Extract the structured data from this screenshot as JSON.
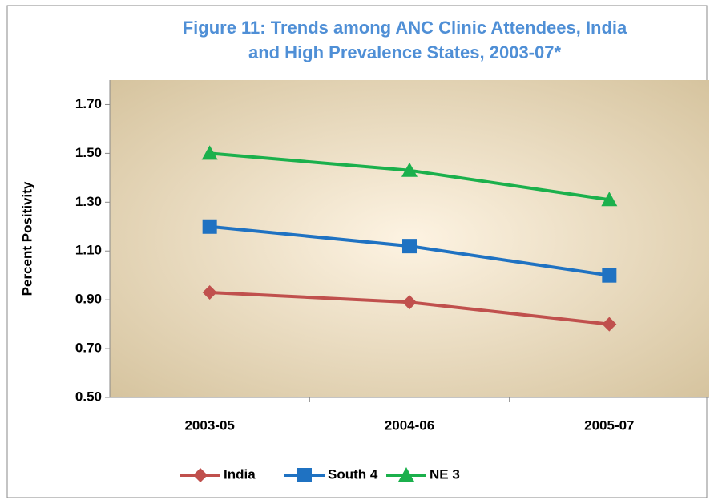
{
  "chart_data": {
    "type": "line",
    "title": [
      "Figure 11: Trends among ANC Clinic Attendees, India",
      "and High Prevalence States, 2003-07*"
    ],
    "y_label": "Percent Positivity",
    "categories": [
      "2003-05",
      "2004-06",
      "2005-07"
    ],
    "series": [
      {
        "name": "India",
        "color": "#c0504d",
        "marker": "diamond",
        "values": [
          0.93,
          0.89,
          0.8
        ]
      },
      {
        "name": "South 4",
        "color": "#1f72c2",
        "marker": "square",
        "values": [
          1.2,
          1.12,
          1.0
        ]
      },
      {
        "name": "NE 3",
        "color": "#1bb04c",
        "marker": "triangle",
        "values": [
          1.5,
          1.43,
          1.31
        ]
      }
    ],
    "ylim": [
      0.5,
      1.8
    ],
    "yticks": [
      {
        "value": 0.5,
        "label": "0.50"
      },
      {
        "value": 0.7,
        "label": "0.70"
      },
      {
        "value": 0.9,
        "label": "0.90"
      },
      {
        "value": 1.1,
        "label": "1.10"
      },
      {
        "value": 1.3,
        "label": "1.30"
      },
      {
        "value": 1.5,
        "label": "1.50"
      },
      {
        "value": 1.7,
        "label": "1.70"
      }
    ],
    "legend": "bottom"
  }
}
